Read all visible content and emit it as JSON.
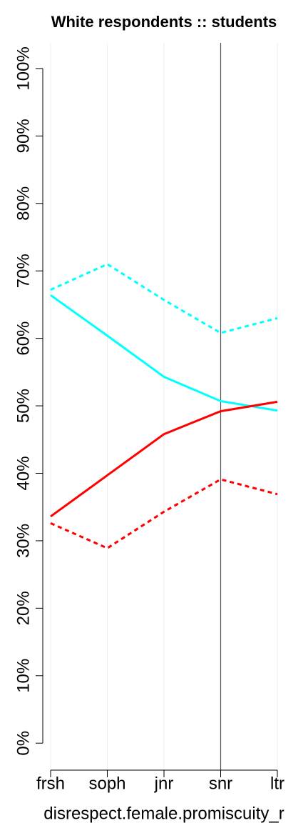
{
  "chart_data": {
    "type": "line",
    "title": "White respondents :: students",
    "x_label": "disrespect.female.promiscuity_r",
    "categories": [
      "frsh",
      "soph",
      "jnr",
      "snr",
      "ltr"
    ],
    "series": [
      {
        "color": "#00ffff",
        "style": "solid",
        "values": [
          66.4,
          60.4,
          54.3,
          50.7,
          49.3
        ]
      },
      {
        "color": "#00ffff",
        "style": "dashed",
        "values": [
          67.2,
          71.0,
          65.7,
          60.8,
          63.0
        ]
      },
      {
        "color": "#ff0000",
        "style": "solid",
        "values": [
          33.6,
          39.7,
          45.8,
          49.2,
          50.6
        ]
      },
      {
        "color": "#ff0000",
        "style": "dashed",
        "values": [
          32.6,
          28.9,
          34.3,
          39.1,
          36.9
        ]
      }
    ],
    "ylim": [
      -4,
      103.8
    ],
    "yticks": [
      {
        "value": 0,
        "label": "0%"
      },
      {
        "value": 10,
        "label": "10%"
      },
      {
        "value": 20,
        "label": "20%"
      },
      {
        "value": 30,
        "label": "30%"
      },
      {
        "value": 40,
        "label": "40%"
      },
      {
        "value": 50,
        "label": "50%"
      },
      {
        "value": 60,
        "label": "60%"
      },
      {
        "value": 70,
        "label": "70%"
      },
      {
        "value": 80,
        "label": "80%"
      },
      {
        "value": 90,
        "label": "90%"
      },
      {
        "value": 100,
        "label": "100%"
      }
    ],
    "grid": true,
    "vline": "snr"
  }
}
